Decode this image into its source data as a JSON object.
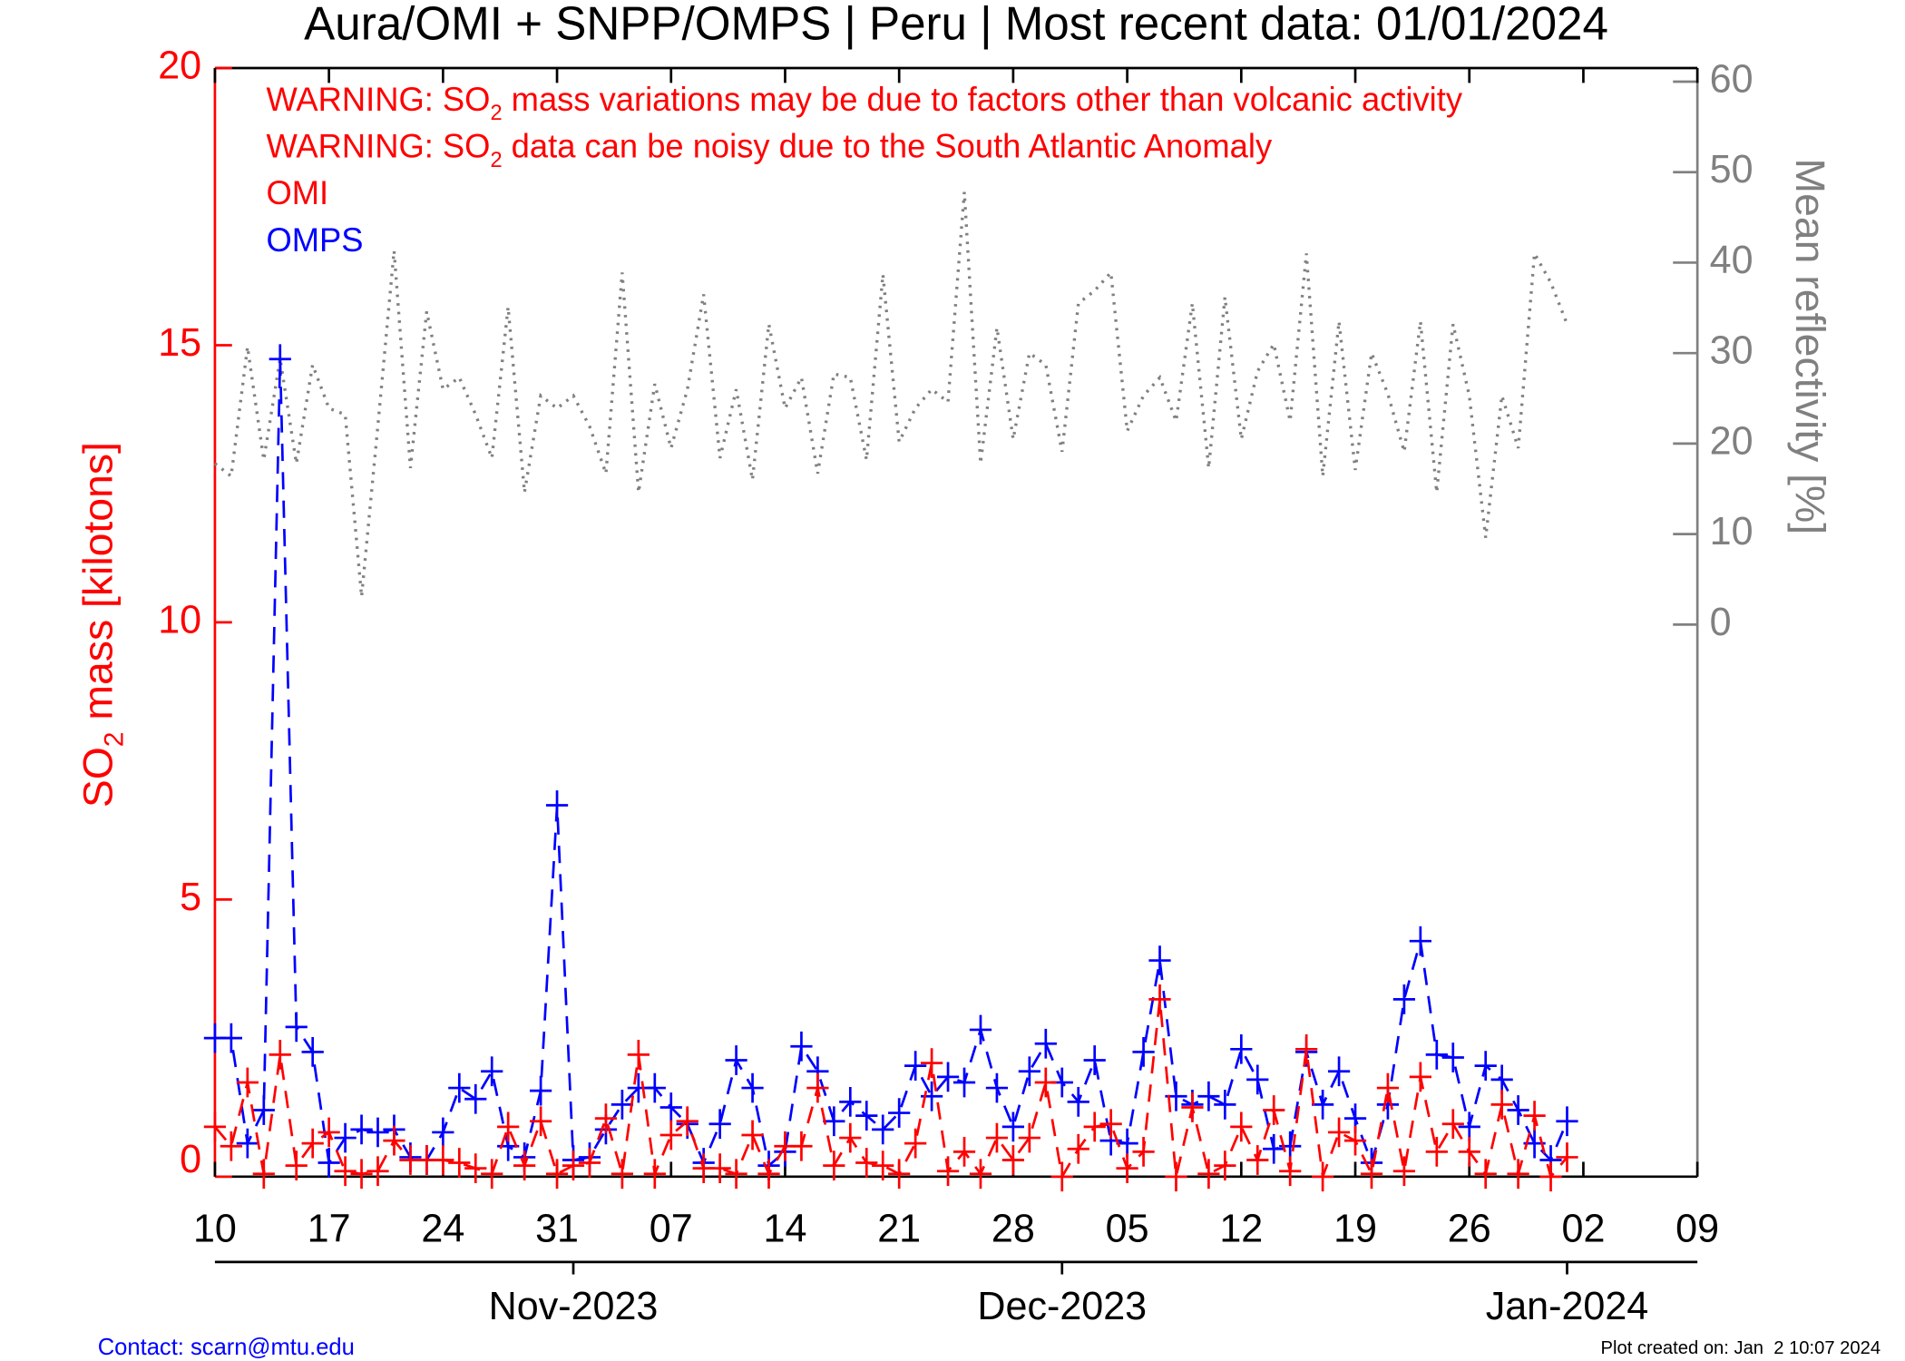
{
  "chart_data": {
    "type": "line",
    "title": "Aura/OMI + SNPP/OMPS | Peru | Most recent data: 01/01/2024",
    "warnings": [
      {
        "before": "WARNING: SO",
        "sub": "2",
        "after": " mass variations may be due to factors other than volcanic activity"
      },
      {
        "before": "WARNING: SO",
        "sub": "2",
        "after": " data can be noisy due to the South Atlantic Anomaly"
      }
    ],
    "y_label": {
      "before": "SO",
      "sub": "2",
      "after": " mass [kilotons]"
    },
    "y2_label": "Mean reflectivity [%]",
    "contact": "Contact: scarn@mtu.edu",
    "created": "Plot created on: Jan  2 10:07 2024",
    "x": [
      "2023-10-10",
      "2023-10-11",
      "2023-10-12",
      "2023-10-13",
      "2023-10-14",
      "2023-10-15",
      "2023-10-16",
      "2023-10-17",
      "2023-10-18",
      "2023-10-19",
      "2023-10-20",
      "2023-10-21",
      "2023-10-22",
      "2023-10-23",
      "2023-10-24",
      "2023-10-25",
      "2023-10-26",
      "2023-10-27",
      "2023-10-28",
      "2023-10-29",
      "2023-10-30",
      "2023-10-31",
      "2023-11-01",
      "2023-11-02",
      "2023-11-03",
      "2023-11-04",
      "2023-11-05",
      "2023-11-06",
      "2023-11-07",
      "2023-11-08",
      "2023-11-09",
      "2023-11-10",
      "2023-11-11",
      "2023-11-12",
      "2023-11-13",
      "2023-11-14",
      "2023-11-15",
      "2023-11-16",
      "2023-11-17",
      "2023-11-18",
      "2023-11-19",
      "2023-11-20",
      "2023-11-21",
      "2023-11-22",
      "2023-11-23",
      "2023-11-24",
      "2023-11-25",
      "2023-11-26",
      "2023-11-27",
      "2023-11-28",
      "2023-11-29",
      "2023-11-30",
      "2023-12-01",
      "2023-12-02",
      "2023-12-03",
      "2023-12-04",
      "2023-12-05",
      "2023-12-06",
      "2023-12-07",
      "2023-12-08",
      "2023-12-09",
      "2023-12-10",
      "2023-12-11",
      "2023-12-12",
      "2023-12-13",
      "2023-12-14",
      "2023-12-15",
      "2023-12-16",
      "2023-12-17",
      "2023-12-18",
      "2023-12-19",
      "2023-12-20",
      "2023-12-21",
      "2023-12-22",
      "2023-12-23",
      "2023-12-24",
      "2023-12-25",
      "2023-12-26",
      "2023-12-27",
      "2023-12-28",
      "2023-12-29",
      "2023-12-30",
      "2023-12-31",
      "2024-01-01"
    ],
    "series": [
      {
        "name": "OMI",
        "color": "#ff0000",
        "line_style": "dashed",
        "marker": "+",
        "values": [
          0.9,
          0.55,
          1.7,
          0.05,
          2.2,
          0.2,
          0.6,
          0.8,
          0.1,
          0.05,
          0.1,
          0.65,
          0.3,
          0.3,
          0.3,
          0.25,
          0.15,
          0.05,
          0.9,
          0.2,
          1.0,
          0.05,
          0.2,
          0.25,
          1.05,
          0.05,
          2.2,
          0.05,
          0.75,
          1.0,
          0.15,
          0.15,
          0.05,
          0.75,
          0.05,
          0.55,
          0.55,
          1.6,
          0.2,
          0.7,
          0.25,
          0.2,
          0.05,
          0.6,
          2.05,
          0.1,
          0.45,
          0.05,
          0.7,
          0.3,
          0.7,
          1.7,
          0.0,
          0.5,
          0.9,
          0.95,
          0.15,
          0.45,
          3.2,
          0.0,
          1.25,
          0.05,
          0.2,
          0.9,
          0.3,
          1.2,
          0.1,
          2.3,
          0.0,
          0.8,
          0.65,
          0.05,
          1.6,
          0.1,
          1.8,
          0.45,
          0.95,
          0.45,
          0.05,
          1.3,
          0.05,
          1.1,
          0.0,
          0.35
        ]
      },
      {
        "name": "OMPS",
        "color": "#0000ff",
        "line_style": "dashed",
        "marker": "+",
        "values": [
          2.5,
          2.5,
          0.6,
          1.2,
          14.75,
          2.7,
          2.25,
          0.25,
          0.7,
          0.85,
          0.8,
          0.85,
          0.35,
          0.3,
          0.8,
          1.6,
          1.4,
          1.9,
          0.55,
          0.35,
          1.55,
          6.7,
          0.3,
          0.35,
          0.85,
          1.3,
          1.6,
          1.6,
          1.25,
          0.95,
          0.25,
          0.95,
          2.1,
          1.6,
          0.2,
          0.45,
          2.35,
          1.9,
          1.0,
          1.35,
          1.1,
          0.85,
          1.15,
          2.0,
          1.45,
          1.8,
          1.7,
          2.65,
          1.6,
          0.9,
          1.9,
          2.4,
          1.7,
          1.35,
          2.1,
          0.65,
          0.6,
          2.25,
          3.9,
          1.45,
          1.3,
          1.45,
          1.3,
          2.3,
          1.75,
          0.5,
          0.55,
          2.25,
          1.3,
          1.9,
          1.05,
          0.25,
          1.3,
          3.2,
          4.25,
          2.2,
          2.15,
          0.9,
          2.0,
          1.75,
          1.2,
          0.6,
          0.3,
          1.0
        ]
      },
      {
        "name": "Mean reflectivity",
        "color": "#808080",
        "line_style": "dotted",
        "marker": "none",
        "axis": "y2",
        "values": [
          17.8,
          16.4,
          30.7,
          18.2,
          29.4,
          17.8,
          28.7,
          23.9,
          23.2,
          3.1,
          21.9,
          41.3,
          17.3,
          34.6,
          26,
          27.3,
          23.2,
          18.4,
          35.1,
          14.6,
          25.3,
          23.9,
          25.3,
          21.9,
          16.7,
          38.9,
          14.6,
          26.6,
          19.5,
          26,
          36.5,
          18.4,
          26,
          16,
          33.2,
          23.9,
          27.3,
          16.7,
          27.7,
          27.3,
          18.2,
          38.7,
          20.2,
          23.9,
          26,
          24.6,
          47.8,
          17.8,
          32.8,
          20.5,
          30,
          28.7,
          19.1,
          35.5,
          36.9,
          38.9,
          21.4,
          25.3,
          27.3,
          22.5,
          35.5,
          17.3,
          36.2,
          20.5,
          28,
          31,
          22.5,
          41,
          16.4,
          33.5,
          17.1,
          30,
          25.5,
          19.1,
          33.5,
          14.6,
          33.2,
          25.3,
          9.6,
          25.3,
          19.5,
          41,
          37.8,
          33.2
        ]
      }
    ],
    "legend_series": [
      0,
      1
    ],
    "xlim": [
      "2023-10-10",
      "2024-01-09"
    ],
    "xticks": [
      {
        "value": "2023-10-10",
        "label": "10"
      },
      {
        "value": "2023-10-17",
        "label": "17"
      },
      {
        "value": "2023-10-24",
        "label": "24"
      },
      {
        "value": "2023-10-31",
        "label": "31"
      },
      {
        "value": "2023-11-07",
        "label": "07"
      },
      {
        "value": "2023-11-14",
        "label": "14"
      },
      {
        "value": "2023-11-21",
        "label": "21"
      },
      {
        "value": "2023-11-28",
        "label": "28"
      },
      {
        "value": "2023-12-05",
        "label": "05"
      },
      {
        "value": "2023-12-12",
        "label": "12"
      },
      {
        "value": "2023-12-19",
        "label": "19"
      },
      {
        "value": "2023-12-26",
        "label": "26"
      },
      {
        "value": "2024-01-02",
        "label": "02"
      },
      {
        "value": "2024-01-09",
        "label": "09"
      }
    ],
    "month_ticks": [
      {
        "value": "2023-11-01",
        "label": "Nov-2023"
      },
      {
        "value": "2023-12-01",
        "label": "Dec-2023"
      },
      {
        "value": "2024-01-01",
        "label": "Jan-2024"
      }
    ],
    "ylim": [
      0,
      20
    ],
    "yticks": [
      0,
      5,
      10,
      15,
      20
    ],
    "y2lim": [
      -61,
      61.5
    ],
    "y2ticks": [
      0,
      10,
      20,
      30,
      40,
      50,
      60
    ],
    "y_color": "#ff0000",
    "y2_color": "#808080"
  }
}
